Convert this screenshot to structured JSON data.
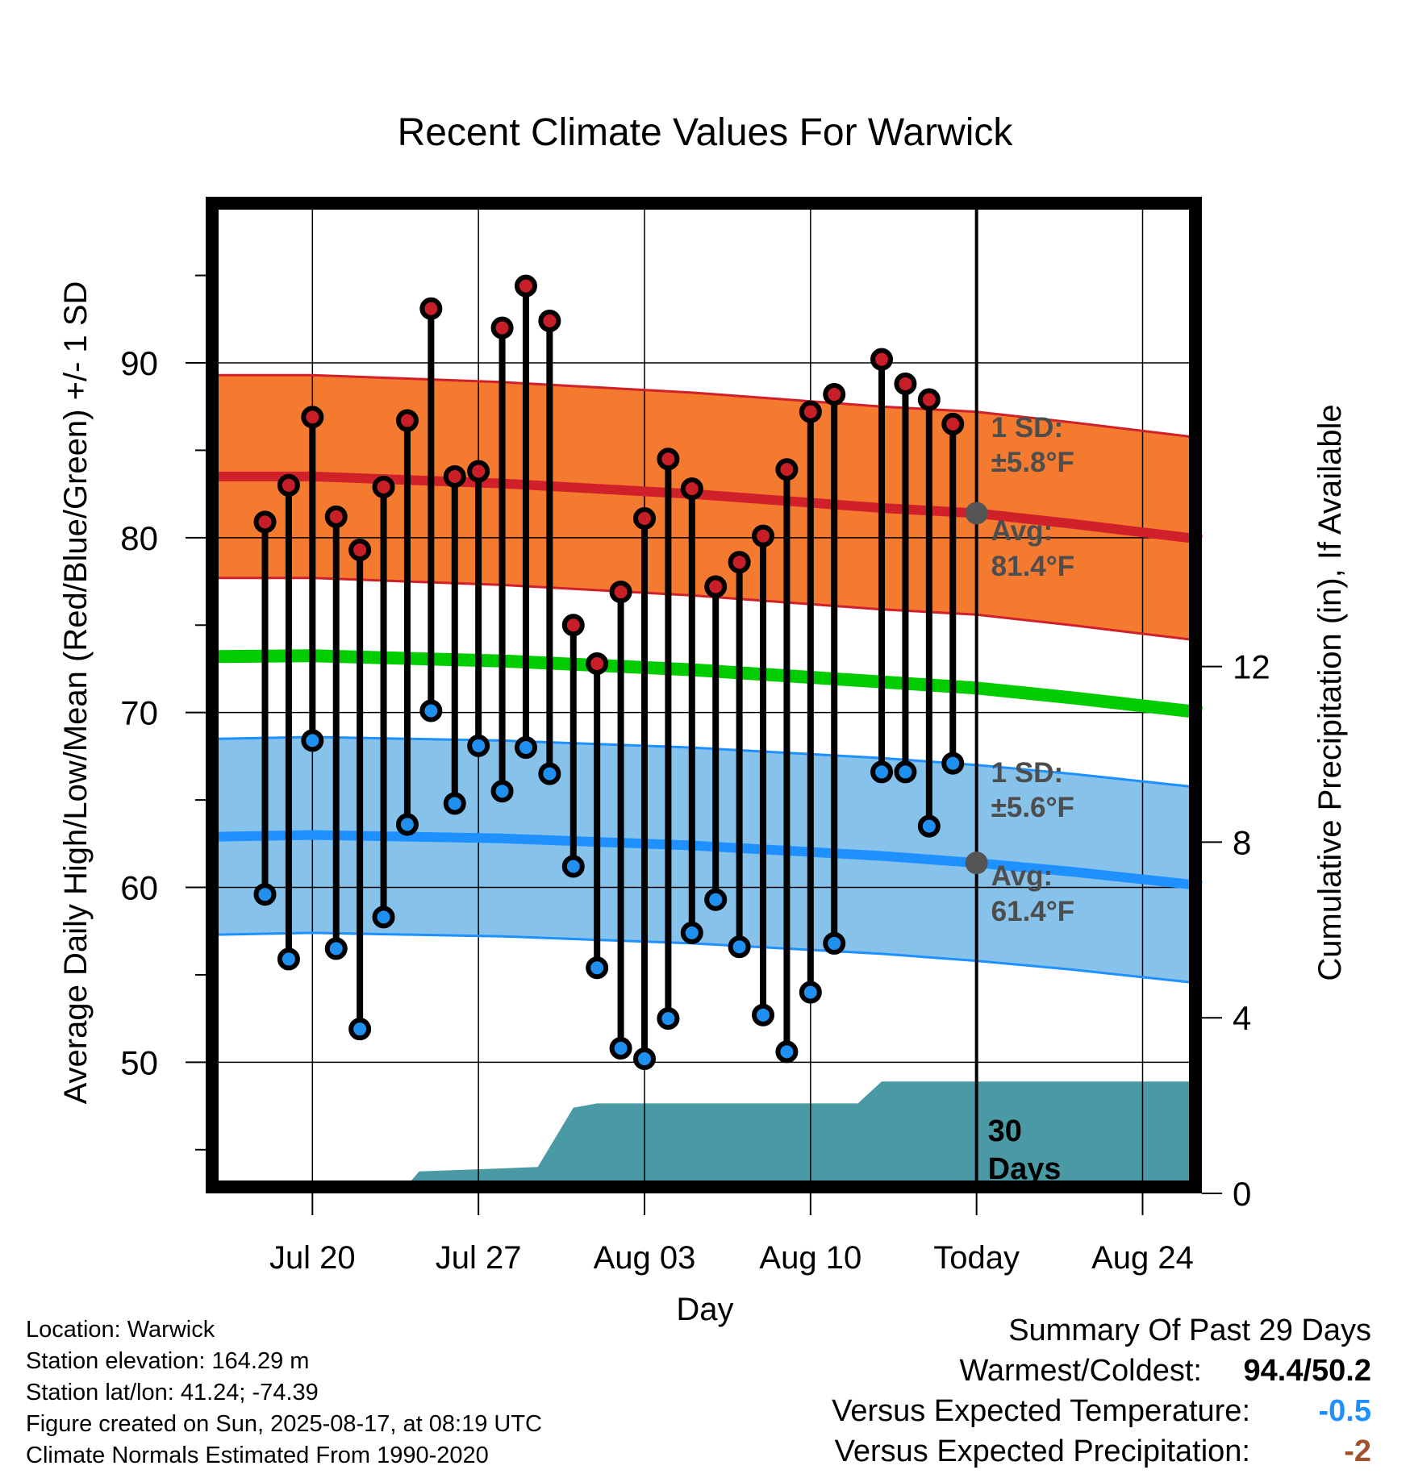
{
  "chart_data": {
    "type": "line",
    "title": "Recent Climate Values For Warwick",
    "xlabel": "Day",
    "ylabel": "Average Daily High/Low/Mean (Red/Blue/Green) +/- 1 SD",
    "ylabel_right": "Cumulative Precipitation (in), If Available",
    "ylim": [
      42.5,
      99.5
    ],
    "ylim_right": [
      0,
      22.7
    ],
    "yticks": [
      50,
      60,
      70,
      80,
      90
    ],
    "yticks_right": [
      0,
      4,
      8,
      12
    ],
    "x_day_range": [
      -32.5,
      9.5
    ],
    "xticks": [
      {
        "day": -28,
        "label": "Jul 20"
      },
      {
        "day": -21,
        "label": "Jul 27"
      },
      {
        "day": -14,
        "label": "Aug 03"
      },
      {
        "day": -7,
        "label": "Aug 10"
      },
      {
        "day": 0,
        "label": "Today"
      },
      {
        "day": 7,
        "label": "Aug 24"
      }
    ],
    "grid": true,
    "daily": [
      {
        "day": -30,
        "high": 80.9,
        "low": 59.6
      },
      {
        "day": -29,
        "high": 83.0,
        "low": 55.9
      },
      {
        "day": -28,
        "high": 86.9,
        "low": 68.4
      },
      {
        "day": -27,
        "high": 81.2,
        "low": 56.5
      },
      {
        "day": -26,
        "high": 79.3,
        "low": 51.9
      },
      {
        "day": -25,
        "high": 82.9,
        "low": 58.3
      },
      {
        "day": -24,
        "high": 86.7,
        "low": 63.6
      },
      {
        "day": -23,
        "high": 93.1,
        "low": 70.1
      },
      {
        "day": -22,
        "high": 83.5,
        "low": 64.8
      },
      {
        "day": -21,
        "high": 83.8,
        "low": 68.1
      },
      {
        "day": -20,
        "high": 92.0,
        "low": 65.5
      },
      {
        "day": -19,
        "high": 94.4,
        "low": 68.0
      },
      {
        "day": -18,
        "high": 92.4,
        "low": 66.5
      },
      {
        "day": -17,
        "high": 75.0,
        "low": 61.2
      },
      {
        "day": -16,
        "high": 72.8,
        "low": 55.4
      },
      {
        "day": -15,
        "high": 76.9,
        "low": 50.8
      },
      {
        "day": -14,
        "high": 81.1,
        "low": 50.2
      },
      {
        "day": -13,
        "high": 84.5,
        "low": 52.5
      },
      {
        "day": -12,
        "high": 82.8,
        "low": 57.4
      },
      {
        "day": -11,
        "high": 77.2,
        "low": 59.3
      },
      {
        "day": -10,
        "high": 78.6,
        "low": 56.6
      },
      {
        "day": -9,
        "high": 80.1,
        "low": 52.7
      },
      {
        "day": -8,
        "high": 83.9,
        "low": 50.6
      },
      {
        "day": -7,
        "high": 87.2,
        "low": 54.0
      },
      {
        "day": -6,
        "high": 88.2,
        "low": 56.8
      },
      {
        "day": -4,
        "high": 90.2,
        "low": 66.6
      },
      {
        "day": -3,
        "high": 88.8,
        "low": 66.6
      },
      {
        "day": -2,
        "high": 87.9,
        "low": 63.5
      },
      {
        "day": -1,
        "high": 86.5,
        "low": 67.1
      }
    ],
    "normals": {
      "days": [
        -32,
        -28,
        -24,
        -20,
        -16,
        -12,
        -8,
        -4,
        0,
        4,
        9.5
      ],
      "high_avg": [
        83.5,
        83.5,
        83.3,
        83.1,
        82.8,
        82.5,
        82.1,
        81.7,
        81.4,
        80.8,
        79.9
      ],
      "high_sd": 5.8,
      "low_avg": [
        62.9,
        63.0,
        62.9,
        62.8,
        62.6,
        62.4,
        62.1,
        61.8,
        61.4,
        60.9,
        60.1
      ],
      "low_sd": 5.6,
      "mean_avg": [
        73.2,
        73.25,
        73.1,
        72.95,
        72.7,
        72.45,
        72.1,
        71.75,
        71.4,
        70.85,
        70.0
      ]
    },
    "precip_cumulative": [
      {
        "day": -32.5,
        "value": 0
      },
      {
        "day": -24.3,
        "value": 0
      },
      {
        "day": -23.5,
        "value": 0.5
      },
      {
        "day": -18.5,
        "value": 0.6
      },
      {
        "day": -17,
        "value": 1.95
      },
      {
        "day": -16,
        "value": 2.05
      },
      {
        "day": -5,
        "value": 2.05
      },
      {
        "day": -4,
        "value": 2.55
      },
      {
        "day": 9.5,
        "value": 2.55
      }
    ],
    "annotations": {
      "high_sd_label": "1 SD:",
      "high_sd_value": "±5.8°F",
      "high_avg_label": "Avg:",
      "high_avg_value": "81.4°F",
      "low_sd_label": "1 SD:",
      "low_sd_value": "±5.6°F",
      "low_avg_label": "Avg:",
      "low_avg_value": "61.4°F",
      "precip_label_1": "30",
      "precip_label_2": "Days"
    },
    "colors": {
      "high_band": "#f47a30",
      "high_line": "#d0202a",
      "low_band": "#87c2ea",
      "low_line": "#1e90ff",
      "mean_line": "#00cc00",
      "precip": "#4a9aa5",
      "high_marker": "#c81e28",
      "low_marker": "#2090f0",
      "annotation": "#4d4d4d"
    }
  },
  "footer": {
    "location": "Location: Warwick",
    "elevation": "Station elevation: 164.29 m",
    "latlon": "Station lat/lon: 41.24; -74.39",
    "created": "Figure created on Sun, 2025-08-17, at 08:19 UTC",
    "normals": "Climate Normals Estimated From 1990-2020"
  },
  "summary": {
    "title": "Summary Of Past 29 Days",
    "warm_cold_label": "Warmest/Coldest:",
    "warm_cold_value": "94.4/50.2",
    "temp_label": "Versus Expected Temperature:",
    "temp_value": "-0.5",
    "precip_label": "Versus Expected Precipitation:",
    "precip_value": "-2"
  }
}
